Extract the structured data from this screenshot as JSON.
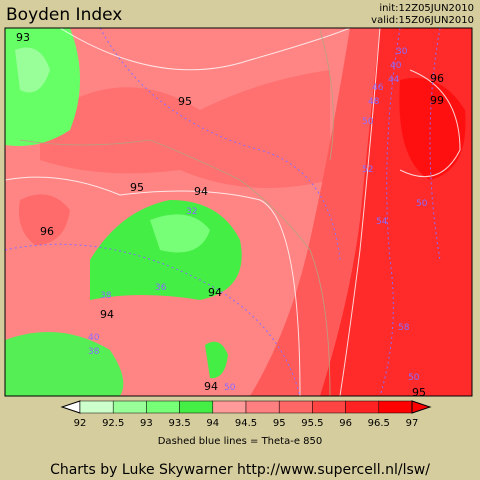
{
  "header": {
    "title": "Boyden Index",
    "init": "init:12Z05JUN2010",
    "valid": "valid:15Z06JUN2010"
  },
  "map": {
    "contour_labels": [
      "93",
      "95",
      "95",
      "94",
      "96",
      "94",
      "94",
      "94",
      "96",
      "99",
      "95"
    ],
    "theta_labels": [
      "30",
      "40",
      "44",
      "46",
      "48",
      "50",
      "52",
      "54",
      "50",
      "32",
      "36",
      "38",
      "40",
      "38",
      "50",
      "58",
      "50"
    ]
  },
  "legend": {
    "ticks": [
      "92",
      "92.5",
      "93",
      "93.5",
      "94",
      "94.5",
      "95",
      "95.5",
      "96",
      "96.5",
      "97"
    ],
    "colors": [
      "#ffffff",
      "#ccffcc",
      "#99ff99",
      "#77ff77",
      "#44ee44",
      "#ff9a9a",
      "#ff8080",
      "#ff6666",
      "#ff4444",
      "#ff2222",
      "#ff0000",
      "#ff0000"
    ],
    "caption": "Dashed blue lines = Theta-e 850"
  },
  "footer": "Charts by Luke Skywarner http://www.supercell.nl/lsw/"
}
